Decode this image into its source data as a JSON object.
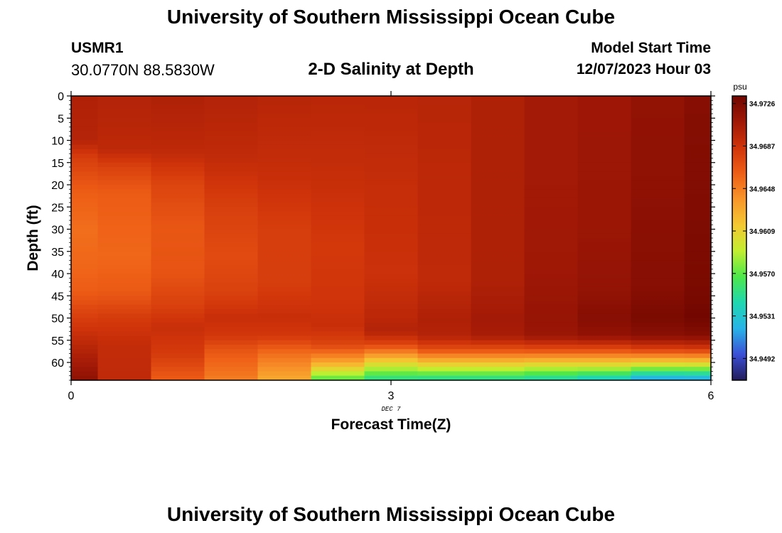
{
  "page": {
    "title_top": "University of Southern Mississippi Ocean Cube",
    "title_bottom": "University of Southern Mississippi Ocean Cube",
    "station_id": "USMR1",
    "station_coords": "30.0770N  88.5830W",
    "plot_title": "2-D Salinity at Depth",
    "model_start_label": "Model Start Time",
    "model_start_value": "12/07/2023 Hour 03"
  },
  "chart_data": {
    "type": "heatmap",
    "title": "2-D Salinity at Depth",
    "xlabel": "Forecast Time(Z)",
    "ylabel": "Depth (ft)",
    "x_sublabel": "DEC 7",
    "xlim": [
      0,
      6
    ],
    "ylim": [
      0,
      64
    ],
    "x_ticks": [
      0,
      3,
      6
    ],
    "y_ticks": [
      0,
      5,
      10,
      15,
      20,
      25,
      30,
      35,
      40,
      45,
      50,
      55,
      60
    ],
    "time_columns": [
      0,
      0.5,
      1,
      1.5,
      2,
      2.5,
      3,
      3.5,
      4,
      4.5,
      5,
      5.5,
      6
    ],
    "colorbar": {
      "unit": "psu",
      "ticks": [
        "34.9492",
        "34.9531",
        "34.9570",
        "34.9609",
        "34.9648",
        "34.9687",
        "34.9726"
      ],
      "min": 34.9472,
      "max": 34.9733,
      "colors": [
        "#221c5a",
        "#3b4fd6",
        "#28b4e8",
        "#1fd8b0",
        "#4de84a",
        "#c2ee30",
        "#f4c832",
        "#f8962a",
        "#ee5e16",
        "#d0340a",
        "#a01806",
        "#700600"
      ]
    },
    "profiles": [
      {
        "time": 0,
        "values": [
          [
            0,
            34.9702
          ],
          [
            10,
            34.9699
          ],
          [
            14,
            34.968
          ],
          [
            22,
            34.9662
          ],
          [
            30,
            34.9655
          ],
          [
            38,
            34.9658
          ],
          [
            44,
            34.9663
          ],
          [
            50,
            34.968
          ],
          [
            56,
            34.9696
          ],
          [
            62,
            34.9712
          ],
          [
            64,
            34.9718
          ]
        ]
      },
      {
        "time": 0.5,
        "values": [
          [
            0,
            34.97
          ],
          [
            12,
            34.9695
          ],
          [
            16,
            34.9678
          ],
          [
            22,
            34.9663
          ],
          [
            36,
            34.9658
          ],
          [
            44,
            34.9664
          ],
          [
            50,
            34.9682
          ],
          [
            56,
            34.9692
          ],
          [
            64,
            34.9694
          ]
        ]
      },
      {
        "time": 1,
        "values": [
          [
            0,
            34.9702
          ],
          [
            12,
            34.9695
          ],
          [
            20,
            34.9676
          ],
          [
            30,
            34.9666
          ],
          [
            40,
            34.9668
          ],
          [
            48,
            34.968
          ],
          [
            52,
            34.969
          ],
          [
            58,
            34.9682
          ],
          [
            64,
            34.9663
          ]
        ]
      },
      {
        "time": 1.5,
        "values": [
          [
            0,
            34.97
          ],
          [
            14,
            34.9693
          ],
          [
            24,
            34.968
          ],
          [
            36,
            34.9672
          ],
          [
            44,
            34.9678
          ],
          [
            50,
            34.969
          ],
          [
            54,
            34.9684
          ],
          [
            58,
            34.9664
          ],
          [
            64,
            34.9648
          ]
        ]
      },
      {
        "time": 2,
        "values": [
          [
            0,
            34.9698
          ],
          [
            18,
            34.969
          ],
          [
            30,
            34.968
          ],
          [
            42,
            34.968
          ],
          [
            50,
            34.969
          ],
          [
            54,
            34.9684
          ],
          [
            58,
            34.9655
          ],
          [
            64,
            34.9628
          ]
        ]
      },
      {
        "time": 2.5,
        "values": [
          [
            0,
            34.9697
          ],
          [
            20,
            34.969
          ],
          [
            34,
            34.9683
          ],
          [
            46,
            34.9686
          ],
          [
            52,
            34.969
          ],
          [
            56,
            34.9676
          ],
          [
            60,
            34.963
          ],
          [
            64,
            34.9565
          ]
        ]
      },
      {
        "time": 3,
        "values": [
          [
            0,
            34.9697
          ],
          [
            20,
            34.9691
          ],
          [
            40,
            34.9688
          ],
          [
            50,
            34.9696
          ],
          [
            53,
            34.97
          ],
          [
            56,
            34.9675
          ],
          [
            60,
            34.9608
          ],
          [
            64,
            34.9548
          ]
        ]
      },
      {
        "time": 3.5,
        "values": [
          [
            0,
            34.9698
          ],
          [
            20,
            34.9695
          ],
          [
            42,
            34.9694
          ],
          [
            50,
            34.9702
          ],
          [
            54,
            34.97
          ],
          [
            57,
            34.9672
          ],
          [
            61,
            34.96
          ],
          [
            64,
            34.9545
          ]
        ]
      },
      {
        "time": 4,
        "values": [
          [
            0,
            34.9702
          ],
          [
            20,
            34.9702
          ],
          [
            42,
            34.9702
          ],
          [
            50,
            34.9708
          ],
          [
            54,
            34.9706
          ],
          [
            57,
            34.9672
          ],
          [
            61,
            34.96
          ],
          [
            64,
            34.9545
          ]
        ]
      },
      {
        "time": 4.5,
        "values": [
          [
            0,
            34.9708
          ],
          [
            20,
            34.9708
          ],
          [
            40,
            34.971
          ],
          [
            50,
            34.9714
          ],
          [
            54,
            34.9712
          ],
          [
            57,
            34.9674
          ],
          [
            61,
            34.9595
          ],
          [
            64,
            34.954
          ]
        ]
      },
      {
        "time": 5,
        "values": [
          [
            0,
            34.971
          ],
          [
            30,
            34.9712
          ],
          [
            44,
            34.9716
          ],
          [
            50,
            34.9722
          ],
          [
            54,
            34.9716
          ],
          [
            57,
            34.9674
          ],
          [
            61,
            34.9595
          ],
          [
            64,
            34.953
          ]
        ]
      },
      {
        "time": 5.5,
        "values": [
          [
            0,
            34.9716
          ],
          [
            20,
            34.9718
          ],
          [
            44,
            34.9722
          ],
          [
            50,
            34.9728
          ],
          [
            54,
            34.972
          ],
          [
            57,
            34.968
          ],
          [
            61,
            34.9588
          ],
          [
            64,
            34.9508
          ]
        ]
      },
      {
        "time": 6,
        "values": [
          [
            0,
            34.9722
          ],
          [
            20,
            34.9724
          ],
          [
            44,
            34.9728
          ],
          [
            50,
            34.9732
          ],
          [
            54,
            34.9722
          ],
          [
            57,
            34.9682
          ],
          [
            61,
            34.9588
          ],
          [
            64,
            34.951
          ]
        ]
      }
    ]
  }
}
